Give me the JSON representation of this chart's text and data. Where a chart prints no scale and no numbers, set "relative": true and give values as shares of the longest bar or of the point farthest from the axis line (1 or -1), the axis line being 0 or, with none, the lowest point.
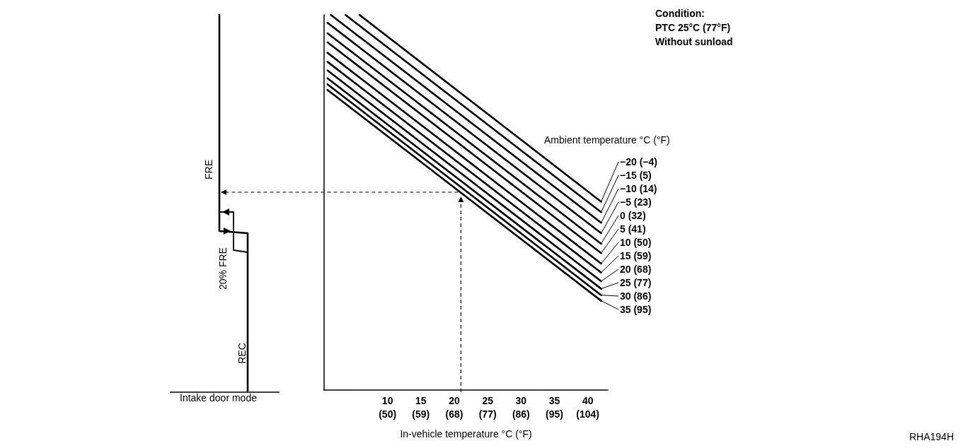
{
  "chart_data": {
    "type": "line",
    "relative": true,
    "xlabel": "In-vehicle temperature °C (°F)",
    "legend_title": "Ambient temperature °C (°F)",
    "xlim": [
      0.5,
      43
    ],
    "xticks": [
      10,
      15,
      20,
      25,
      30,
      35,
      40
    ],
    "x2lim": [
      32.9,
      109.4
    ],
    "x2ticks": [
      {
        "value": 50,
        "label": "(50)"
      },
      {
        "value": 59,
        "label": "(59)"
      },
      {
        "value": 68,
        "label": "(68)"
      },
      {
        "value": 77,
        "label": "(77)"
      },
      {
        "value": 86,
        "label": "(86)"
      },
      {
        "value": 95,
        "label": "(95)"
      },
      {
        "value": 104,
        "label": "(104)"
      }
    ],
    "marker": "none",
    "line_style": "solid",
    "legend": "right",
    "ref_lines": [
      {
        "axis": "x",
        "value": 21,
        "line_style": "dashed"
      },
      {
        "axis": "y",
        "value": 0.53,
        "line_style": "dashed"
      }
    ],
    "series": [
      {
        "name": "−20 (−4)",
        "color": "#000000",
        "x": [
          5.8,
          42
        ],
        "values": [
          1.0,
          0.502
        ]
      },
      {
        "name": "−15 (5)",
        "color": "#000000",
        "x": [
          3.7,
          42
        ],
        "values": [
          1.0,
          0.474
        ]
      },
      {
        "name": "−10 (14)",
        "color": "#000000",
        "x": [
          1.5,
          42
        ],
        "values": [
          1.0,
          0.446
        ]
      },
      {
        "name": "−5 (23)",
        "color": "#000000",
        "x": [
          1,
          42
        ],
        "values": [
          0.979,
          0.418
        ]
      },
      {
        "name": "0 (32)",
        "color": "#000000",
        "x": [
          1,
          42
        ],
        "values": [
          0.951,
          0.39
        ]
      },
      {
        "name": "5 (41)",
        "color": "#000000",
        "x": [
          1,
          42
        ],
        "values": [
          0.927,
          0.365
        ]
      },
      {
        "name": "10 (50)",
        "color": "#000000",
        "x": [
          1,
          42
        ],
        "values": [
          0.899,
          0.337
        ]
      },
      {
        "name": "15 (59)",
        "color": "#000000",
        "x": [
          1,
          42
        ],
        "values": [
          0.875,
          0.313
        ]
      },
      {
        "name": "20 (68)",
        "color": "#000000",
        "x": [
          1,
          42
        ],
        "values": [
          0.852,
          0.29
        ]
      },
      {
        "name": "25 (77)",
        "color": "#000000",
        "x": [
          1,
          42
        ],
        "values": [
          0.831,
          0.27
        ]
      },
      {
        "name": "30 (86)",
        "color": "#000000",
        "x": [
          1,
          42
        ],
        "values": [
          0.815,
          0.253
        ]
      },
      {
        "name": "35 (95)",
        "color": "#000000",
        "x": [
          1,
          42
        ],
        "values": [
          0.8,
          0.238
        ]
      }
    ],
    "annotations": [
      "Condition:",
      "PTC 25°C (77°F)",
      "Without sunload",
      "Intake door mode",
      "FRE",
      "20% FRE",
      "REC",
      "RHA194H"
    ]
  }
}
